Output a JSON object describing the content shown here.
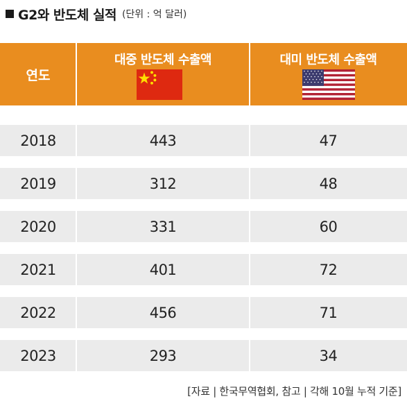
{
  "title": {
    "main": "G2와 반도체 실적",
    "unit": "(단위 : 억 달러)"
  },
  "chart_data": {
    "type": "table",
    "columns": [
      "연도",
      "대중 반도체 수출액",
      "대미 반도체 수출액"
    ],
    "rows": [
      [
        "2018",
        "443",
        "47"
      ],
      [
        "2019",
        "312",
        "48"
      ],
      [
        "2020",
        "331",
        "60"
      ],
      [
        "2021",
        "401",
        "72"
      ],
      [
        "2022",
        "456",
        "71"
      ],
      [
        "2023",
        "293",
        "34"
      ]
    ]
  },
  "flags": {
    "china": "china-flag-icon",
    "usa": "usa-flag-icon"
  },
  "colors": {
    "header_background": "#e98d1f",
    "row_background": "#ebebeb"
  },
  "source": "[자료 | 한국무역협회, 참고 | 각해 10월 누적 기준]"
}
